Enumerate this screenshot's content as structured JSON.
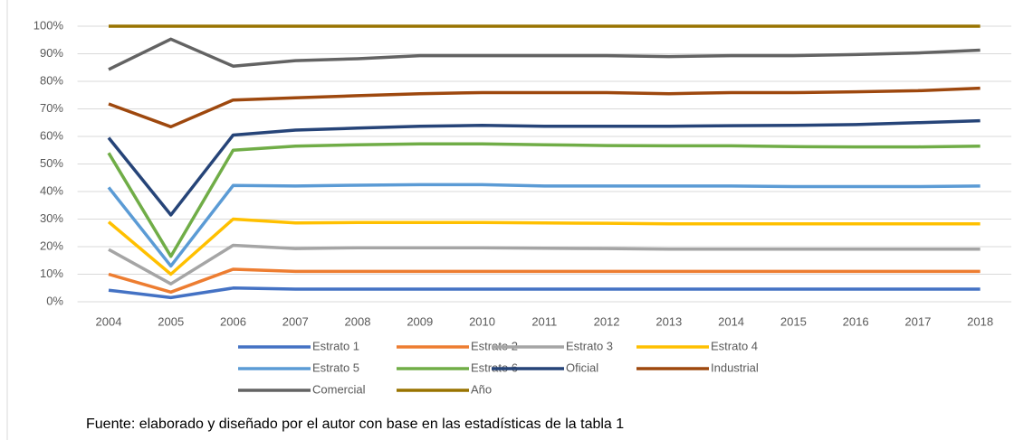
{
  "chart_data": {
    "type": "line",
    "categories": [
      "2004",
      "2005",
      "2006",
      "2007",
      "2008",
      "2009",
      "2010",
      "2011",
      "2012",
      "2013",
      "2014",
      "2015",
      "2016",
      "2017",
      "2018"
    ],
    "series": [
      {
        "name": "Estrato 1",
        "color": "#4472c4",
        "values": [
          4.2,
          1.5,
          5.0,
          4.6,
          4.6,
          4.6,
          4.6,
          4.6,
          4.6,
          4.6,
          4.6,
          4.6,
          4.6,
          4.6,
          4.6
        ]
      },
      {
        "name": "Estrato 2",
        "color": "#ed7d31",
        "values": [
          10,
          3.5,
          11.8,
          11,
          11,
          11,
          11,
          11,
          11,
          11,
          11,
          11,
          11,
          11,
          11
        ]
      },
      {
        "name": "Estrato 3",
        "color": "#a5a5a5",
        "values": [
          19,
          6.5,
          20.5,
          19.3,
          19.6,
          19.6,
          19.6,
          19.4,
          19.3,
          19.1,
          19.1,
          19.1,
          19.1,
          19.1,
          19.1
        ]
      },
      {
        "name": "Estrato 4",
        "color": "#ffc000",
        "values": [
          29,
          10,
          30,
          28.6,
          28.8,
          28.8,
          28.8,
          28.6,
          28.5,
          28.3,
          28.3,
          28.3,
          28.3,
          28.3,
          28.3
        ]
      },
      {
        "name": "Estrato 5",
        "color": "#5b9bd5",
        "values": [
          41.5,
          13,
          42.2,
          42,
          42.3,
          42.5,
          42.5,
          42,
          42,
          42,
          42,
          41.8,
          41.8,
          41.8,
          42
        ]
      },
      {
        "name": "Estrato 6",
        "color": "#70ad47",
        "values": [
          54,
          16.5,
          55,
          56.5,
          57,
          57.3,
          57.3,
          57,
          56.7,
          56.6,
          56.6,
          56.3,
          56.2,
          56.2,
          56.5
        ]
      },
      {
        "name": "Oficial",
        "color": "#264478",
        "values": [
          59.5,
          31.5,
          60.5,
          62.3,
          63,
          63.7,
          64,
          63.7,
          63.7,
          63.7,
          63.9,
          64,
          64.3,
          65,
          65.7
        ]
      },
      {
        "name": "Industrial",
        "color": "#9e480e",
        "values": [
          71.8,
          63.5,
          73.2,
          74,
          74.8,
          75.5,
          75.9,
          75.9,
          75.9,
          75.5,
          75.9,
          75.9,
          76.2,
          76.6,
          77.5
        ]
      },
      {
        "name": "Comercial",
        "color": "#636363",
        "values": [
          84.3,
          95.3,
          85.5,
          87.5,
          88.2,
          89.3,
          89.3,
          89.3,
          89.3,
          89,
          89.3,
          89.3,
          89.7,
          90.3,
          91.3
        ]
      },
      {
        "name": "Año",
        "color": "#997300",
        "values": [
          100,
          100,
          100,
          100,
          100,
          100,
          100,
          100,
          100,
          100,
          100,
          100,
          100,
          100,
          100
        ]
      }
    ],
    "ylim": [
      0,
      100
    ],
    "yticks": [
      {
        "value": 0,
        "label": "0%"
      },
      {
        "value": 10,
        "label": "10%"
      },
      {
        "value": 20,
        "label": "20%"
      },
      {
        "value": 30,
        "label": "30%"
      },
      {
        "value": 40,
        "label": "40%"
      },
      {
        "value": 50,
        "label": "50%"
      },
      {
        "value": 60,
        "label": "60%"
      },
      {
        "value": 70,
        "label": "70%"
      },
      {
        "value": 80,
        "label": "80%"
      },
      {
        "value": 90,
        "label": "90%"
      },
      {
        "value": 100,
        "label": "100%"
      }
    ],
    "grid": true,
    "legend": "bottom",
    "source": "Fuente: elaborado y diseñado por el autor con base en las estadísticas de la tabla 1"
  }
}
